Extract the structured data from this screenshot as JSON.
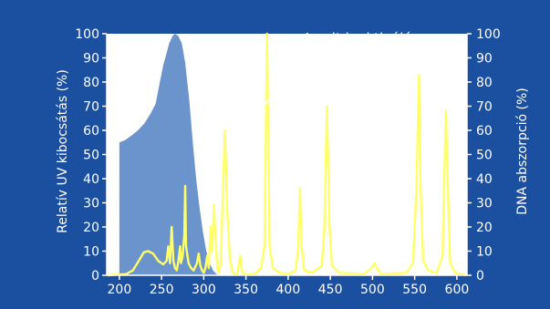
{
  "chart_data": {
    "type": "line",
    "ylabel_left": "Relatív UV kibocsátás (%)",
    "ylabel_right": "DNA abszorpció (%)",
    "xlabel": "",
    "title": "",
    "annotation": "A sejt inaktiválás spektrumgörbéje",
    "x_ticks": [
      200,
      250,
      300,
      350,
      400,
      450,
      500,
      550,
      600
    ],
    "y_ticks": [
      0,
      10,
      20,
      30,
      40,
      50,
      60,
      70,
      80,
      90,
      100
    ],
    "xlim": [
      185,
      612
    ],
    "ylim": [
      0,
      100
    ],
    "grid": false,
    "background_color": "#1b4fa0",
    "plot_color": "#ffffff",
    "series": [
      {
        "kind": "area",
        "color": "#6b93cc",
        "points": [
          [
            200,
            55
          ],
          [
            207,
            56
          ],
          [
            215,
            58
          ],
          [
            222,
            60
          ],
          [
            230,
            63
          ],
          [
            237,
            67
          ],
          [
            243,
            71
          ],
          [
            248,
            80
          ],
          [
            252,
            87
          ],
          [
            256,
            92
          ],
          [
            259,
            96
          ],
          [
            263,
            99
          ],
          [
            266,
            100
          ],
          [
            270,
            99
          ],
          [
            274,
            96
          ],
          [
            278,
            88
          ],
          [
            283,
            72
          ],
          [
            287,
            55
          ],
          [
            291,
            40
          ],
          [
            295,
            28
          ],
          [
            299,
            18
          ],
          [
            303,
            10
          ],
          [
            307,
            5
          ],
          [
            311,
            2
          ],
          [
            315,
            0.5
          ],
          [
            318,
            0
          ]
        ]
      },
      {
        "kind": "line",
        "color": "#ffff66",
        "points": [
          [
            186,
            0
          ],
          [
            208,
            0.5
          ],
          [
            216,
            2
          ],
          [
            223,
            6
          ],
          [
            229,
            9.5
          ],
          [
            234,
            10
          ],
          [
            240,
            9
          ],
          [
            246,
            6
          ],
          [
            252,
            4.5
          ],
          [
            256,
            6
          ],
          [
            258,
            12
          ],
          [
            260,
            5
          ],
          [
            262,
            20
          ],
          [
            264,
            6
          ],
          [
            266,
            3
          ],
          [
            268,
            2
          ],
          [
            270,
            6
          ],
          [
            272,
            12
          ],
          [
            273,
            5
          ],
          [
            275,
            8
          ],
          [
            277,
            17
          ],
          [
            278,
            37
          ],
          [
            279,
            12
          ],
          [
            282,
            5
          ],
          [
            285,
            3
          ],
          [
            288,
            2
          ],
          [
            292,
            5
          ],
          [
            294,
            9
          ],
          [
            296,
            4
          ],
          [
            298,
            2
          ],
          [
            300,
            1
          ],
          [
            302,
            3
          ],
          [
            304,
            8
          ],
          [
            306,
            3
          ],
          [
            308,
            20
          ],
          [
            310,
            10
          ],
          [
            312,
            29
          ],
          [
            314,
            15
          ],
          [
            316,
            3
          ],
          [
            318,
            1
          ],
          [
            320,
            5
          ],
          [
            322,
            26
          ],
          [
            325,
            60
          ],
          [
            328,
            25
          ],
          [
            331,
            7
          ],
          [
            334,
            1
          ],
          [
            340,
            0.5
          ],
          [
            343,
            8
          ],
          [
            346,
            0.5
          ],
          [
            360,
            0.5
          ],
          [
            368,
            3
          ],
          [
            372,
            12
          ],
          [
            375,
            100
          ],
          [
            378,
            12
          ],
          [
            382,
            3
          ],
          [
            390,
            1
          ],
          [
            400,
            0.5
          ],
          [
            409,
            2
          ],
          [
            412,
            12
          ],
          [
            414,
            36
          ],
          [
            416,
            12
          ],
          [
            419,
            2
          ],
          [
            428,
            1
          ],
          [
            440,
            4
          ],
          [
            443,
            20
          ],
          [
            446,
            70
          ],
          [
            449,
            20
          ],
          [
            452,
            4
          ],
          [
            460,
            1
          ],
          [
            490,
            0.5
          ],
          [
            499,
            3
          ],
          [
            502,
            5
          ],
          [
            505,
            3
          ],
          [
            510,
            0.5
          ],
          [
            540,
            1
          ],
          [
            548,
            5
          ],
          [
            552,
            35
          ],
          [
            555,
            83
          ],
          [
            557,
            35
          ],
          [
            560,
            6
          ],
          [
            566,
            2
          ],
          [
            576,
            1
          ],
          [
            583,
            8
          ],
          [
            585,
            40
          ],
          [
            587,
            68
          ],
          [
            589,
            40
          ],
          [
            592,
            5
          ],
          [
            598,
            1
          ],
          [
            611,
            0
          ]
        ]
      }
    ]
  }
}
